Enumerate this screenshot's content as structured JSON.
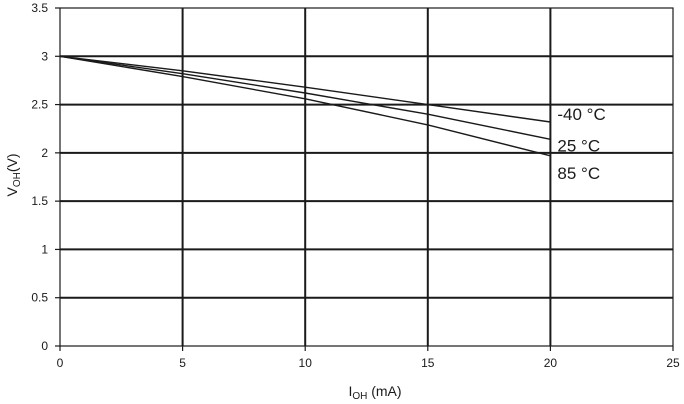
{
  "chart_data": {
    "type": "line",
    "xlabel": {
      "main": "I",
      "sub": "OH",
      "suffix": " (mA)"
    },
    "ylabel": {
      "main": "V",
      "sub": "OH",
      "suffix": "(V)"
    },
    "xlim": [
      0,
      25
    ],
    "ylim": [
      0,
      3.5
    ],
    "xticks": [
      "0",
      "5",
      "10",
      "15",
      "20",
      "25"
    ],
    "yticks": [
      "0",
      "0.5",
      "1",
      "1.5",
      "2",
      "2.5",
      "3",
      "3.5"
    ],
    "grid": true,
    "series": [
      {
        "name": "-40 °C",
        "x": [
          0,
          5,
          10,
          15,
          20
        ],
        "y": [
          3.0,
          2.85,
          2.68,
          2.5,
          2.32
        ]
      },
      {
        "name": "25 °C",
        "x": [
          0,
          5,
          10,
          15,
          20
        ],
        "y": [
          3.0,
          2.82,
          2.62,
          2.4,
          2.14
        ]
      },
      {
        "name": "85 °C",
        "x": [
          0,
          5,
          10,
          15,
          20
        ],
        "y": [
          3.0,
          2.79,
          2.56,
          2.29,
          1.97
        ]
      }
    ]
  }
}
